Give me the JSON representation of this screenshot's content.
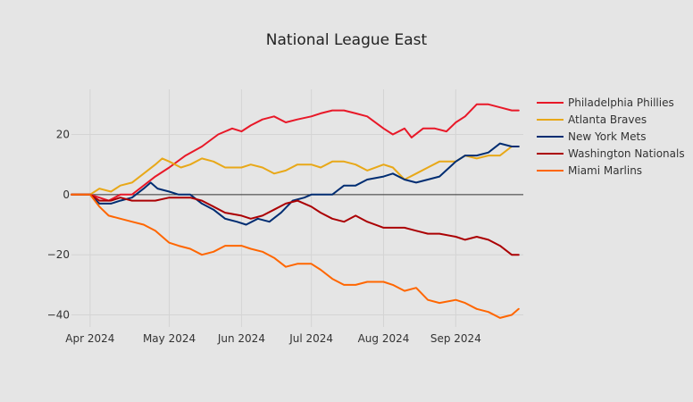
{
  "chart_data": {
    "type": "line",
    "title": "National League East",
    "xlabel": "",
    "ylabel": "",
    "x_range": [
      "2024-03-20",
      "2024-09-30"
    ],
    "ylim": [
      -44,
      35
    ],
    "grid": true,
    "legend_position": "top-right",
    "x_ticks": [
      {
        "date": "2024-03-28",
        "label": "Apr 2024"
      },
      {
        "date": "2024-05-01",
        "label": "May 2024"
      },
      {
        "date": "2024-06-01",
        "label": "Jun 2024"
      },
      {
        "date": "2024-07-01",
        "label": "Jul 2024"
      },
      {
        "date": "2024-08-01",
        "label": "Aug 2024"
      },
      {
        "date": "2024-09-01",
        "label": "Sep 2024"
      }
    ],
    "y_ticks": [
      {
        "value": 20,
        "label": "20"
      },
      {
        "value": 0,
        "label": "0"
      },
      {
        "value": -20,
        "label": "−20"
      },
      {
        "value": -40,
        "label": "−40"
      }
    ],
    "series": [
      {
        "name": "Philadelphia Phillies",
        "color": "#e81828",
        "points": [
          [
            "2024-03-20",
            0
          ],
          [
            "2024-03-28",
            0
          ],
          [
            "2024-04-01",
            -1
          ],
          [
            "2024-04-05",
            -2
          ],
          [
            "2024-04-10",
            0
          ],
          [
            "2024-04-15",
            0
          ],
          [
            "2024-04-20",
            3
          ],
          [
            "2024-04-25",
            6
          ],
          [
            "2024-05-01",
            9
          ],
          [
            "2024-05-08",
            13
          ],
          [
            "2024-05-15",
            16
          ],
          [
            "2024-05-22",
            20
          ],
          [
            "2024-05-28",
            22
          ],
          [
            "2024-06-01",
            21
          ],
          [
            "2024-06-05",
            23
          ],
          [
            "2024-06-10",
            25
          ],
          [
            "2024-06-15",
            26
          ],
          [
            "2024-06-20",
            24
          ],
          [
            "2024-06-25",
            25
          ],
          [
            "2024-07-01",
            26
          ],
          [
            "2024-07-05",
            27
          ],
          [
            "2024-07-10",
            28
          ],
          [
            "2024-07-15",
            28
          ],
          [
            "2024-07-20",
            27
          ],
          [
            "2024-07-25",
            26
          ],
          [
            "2024-08-01",
            22
          ],
          [
            "2024-08-05",
            20
          ],
          [
            "2024-08-10",
            22
          ],
          [
            "2024-08-13",
            19
          ],
          [
            "2024-08-18",
            22
          ],
          [
            "2024-08-23",
            22
          ],
          [
            "2024-08-28",
            21
          ],
          [
            "2024-09-01",
            24
          ],
          [
            "2024-09-05",
            26
          ],
          [
            "2024-09-10",
            30
          ],
          [
            "2024-09-15",
            30
          ],
          [
            "2024-09-20",
            29
          ],
          [
            "2024-09-25",
            28
          ],
          [
            "2024-09-28",
            28
          ]
        ]
      },
      {
        "name": "Atlanta Braves",
        "color": "#e8a818",
        "points": [
          [
            "2024-03-20",
            0
          ],
          [
            "2024-03-28",
            0
          ],
          [
            "2024-04-01",
            2
          ],
          [
            "2024-04-06",
            1
          ],
          [
            "2024-04-10",
            3
          ],
          [
            "2024-04-15",
            4
          ],
          [
            "2024-04-20",
            7
          ],
          [
            "2024-04-25",
            10
          ],
          [
            "2024-04-28",
            12
          ],
          [
            "2024-05-01",
            11
          ],
          [
            "2024-05-06",
            9
          ],
          [
            "2024-05-10",
            10
          ],
          [
            "2024-05-15",
            12
          ],
          [
            "2024-05-20",
            11
          ],
          [
            "2024-05-25",
            9
          ],
          [
            "2024-06-01",
            9
          ],
          [
            "2024-06-05",
            10
          ],
          [
            "2024-06-10",
            9
          ],
          [
            "2024-06-15",
            7
          ],
          [
            "2024-06-20",
            8
          ],
          [
            "2024-06-25",
            10
          ],
          [
            "2024-07-01",
            10
          ],
          [
            "2024-07-05",
            9
          ],
          [
            "2024-07-10",
            11
          ],
          [
            "2024-07-15",
            11
          ],
          [
            "2024-07-20",
            10
          ],
          [
            "2024-07-25",
            8
          ],
          [
            "2024-08-01",
            10
          ],
          [
            "2024-08-05",
            9
          ],
          [
            "2024-08-10",
            5
          ],
          [
            "2024-08-15",
            7
          ],
          [
            "2024-08-20",
            9
          ],
          [
            "2024-08-25",
            11
          ],
          [
            "2024-09-01",
            11
          ],
          [
            "2024-09-05",
            13
          ],
          [
            "2024-09-10",
            12
          ],
          [
            "2024-09-15",
            13
          ],
          [
            "2024-09-20",
            13
          ],
          [
            "2024-09-25",
            16
          ],
          [
            "2024-09-28",
            16
          ]
        ]
      },
      {
        "name": "New York Mets",
        "color": "#002d72",
        "points": [
          [
            "2024-03-20",
            0
          ],
          [
            "2024-03-28",
            0
          ],
          [
            "2024-04-01",
            -3
          ],
          [
            "2024-04-06",
            -3
          ],
          [
            "2024-04-10",
            -2
          ],
          [
            "2024-04-15",
            -1
          ],
          [
            "2024-04-20",
            2
          ],
          [
            "2024-04-23",
            4
          ],
          [
            "2024-04-26",
            2
          ],
          [
            "2024-05-01",
            1
          ],
          [
            "2024-05-05",
            0
          ],
          [
            "2024-05-10",
            0
          ],
          [
            "2024-05-15",
            -3
          ],
          [
            "2024-05-20",
            -5
          ],
          [
            "2024-05-25",
            -8
          ],
          [
            "2024-05-30",
            -9
          ],
          [
            "2024-06-03",
            -10
          ],
          [
            "2024-06-08",
            -8
          ],
          [
            "2024-06-13",
            -9
          ],
          [
            "2024-06-18",
            -6
          ],
          [
            "2024-06-23",
            -2
          ],
          [
            "2024-06-28",
            -1
          ],
          [
            "2024-07-01",
            0
          ],
          [
            "2024-07-05",
            0
          ],
          [
            "2024-07-10",
            0
          ],
          [
            "2024-07-15",
            3
          ],
          [
            "2024-07-20",
            3
          ],
          [
            "2024-07-25",
            5
          ],
          [
            "2024-08-01",
            6
          ],
          [
            "2024-08-05",
            7
          ],
          [
            "2024-08-10",
            5
          ],
          [
            "2024-08-15",
            4
          ],
          [
            "2024-08-20",
            5
          ],
          [
            "2024-08-25",
            6
          ],
          [
            "2024-09-01",
            11
          ],
          [
            "2024-09-05",
            13
          ],
          [
            "2024-09-10",
            13
          ],
          [
            "2024-09-15",
            14
          ],
          [
            "2024-09-20",
            17
          ],
          [
            "2024-09-25",
            16
          ],
          [
            "2024-09-28",
            16
          ]
        ]
      },
      {
        "name": "Washington Nationals",
        "color": "#ab0003",
        "points": [
          [
            "2024-03-20",
            0
          ],
          [
            "2024-03-28",
            0
          ],
          [
            "2024-04-01",
            -2
          ],
          [
            "2024-04-06",
            -2
          ],
          [
            "2024-04-10",
            -1
          ],
          [
            "2024-04-15",
            -2
          ],
          [
            "2024-04-20",
            -2
          ],
          [
            "2024-04-25",
            -2
          ],
          [
            "2024-05-01",
            -1
          ],
          [
            "2024-05-05",
            -1
          ],
          [
            "2024-05-10",
            -1
          ],
          [
            "2024-05-15",
            -2
          ],
          [
            "2024-05-20",
            -4
          ],
          [
            "2024-05-25",
            -6
          ],
          [
            "2024-06-01",
            -7
          ],
          [
            "2024-06-05",
            -8
          ],
          [
            "2024-06-10",
            -7
          ],
          [
            "2024-06-15",
            -5
          ],
          [
            "2024-06-20",
            -3
          ],
          [
            "2024-06-25",
            -2
          ],
          [
            "2024-07-01",
            -4
          ],
          [
            "2024-07-05",
            -6
          ],
          [
            "2024-07-10",
            -8
          ],
          [
            "2024-07-15",
            -9
          ],
          [
            "2024-07-20",
            -7
          ],
          [
            "2024-07-25",
            -9
          ],
          [
            "2024-08-01",
            -11
          ],
          [
            "2024-08-05",
            -11
          ],
          [
            "2024-08-10",
            -11
          ],
          [
            "2024-08-15",
            -12
          ],
          [
            "2024-08-20",
            -13
          ],
          [
            "2024-08-25",
            -13
          ],
          [
            "2024-09-01",
            -14
          ],
          [
            "2024-09-05",
            -15
          ],
          [
            "2024-09-10",
            -14
          ],
          [
            "2024-09-15",
            -15
          ],
          [
            "2024-09-20",
            -17
          ],
          [
            "2024-09-25",
            -20
          ],
          [
            "2024-09-28",
            -20
          ]
        ]
      },
      {
        "name": "Miami Marlins",
        "color": "#ff6600",
        "points": [
          [
            "2024-03-20",
            0
          ],
          [
            "2024-03-28",
            0
          ],
          [
            "2024-04-01",
            -4
          ],
          [
            "2024-04-05",
            -7
          ],
          [
            "2024-04-10",
            -8
          ],
          [
            "2024-04-15",
            -9
          ],
          [
            "2024-04-20",
            -10
          ],
          [
            "2024-04-25",
            -12
          ],
          [
            "2024-05-01",
            -16
          ],
          [
            "2024-05-05",
            -17
          ],
          [
            "2024-05-10",
            -18
          ],
          [
            "2024-05-15",
            -20
          ],
          [
            "2024-05-20",
            -19
          ],
          [
            "2024-05-25",
            -17
          ],
          [
            "2024-06-01",
            -17
          ],
          [
            "2024-06-05",
            -18
          ],
          [
            "2024-06-10",
            -19
          ],
          [
            "2024-06-15",
            -21
          ],
          [
            "2024-06-20",
            -24
          ],
          [
            "2024-06-25",
            -23
          ],
          [
            "2024-07-01",
            -23
          ],
          [
            "2024-07-05",
            -25
          ],
          [
            "2024-07-10",
            -28
          ],
          [
            "2024-07-15",
            -30
          ],
          [
            "2024-07-20",
            -30
          ],
          [
            "2024-07-25",
            -29
          ],
          [
            "2024-08-01",
            -29
          ],
          [
            "2024-08-05",
            -30
          ],
          [
            "2024-08-10",
            -32
          ],
          [
            "2024-08-15",
            -31
          ],
          [
            "2024-08-20",
            -35
          ],
          [
            "2024-08-25",
            -36
          ],
          [
            "2024-09-01",
            -35
          ],
          [
            "2024-09-05",
            -36
          ],
          [
            "2024-09-10",
            -38
          ],
          [
            "2024-09-15",
            -39
          ],
          [
            "2024-09-20",
            -41
          ],
          [
            "2024-09-25",
            -40
          ],
          [
            "2024-09-28",
            -38
          ]
        ]
      }
    ]
  }
}
